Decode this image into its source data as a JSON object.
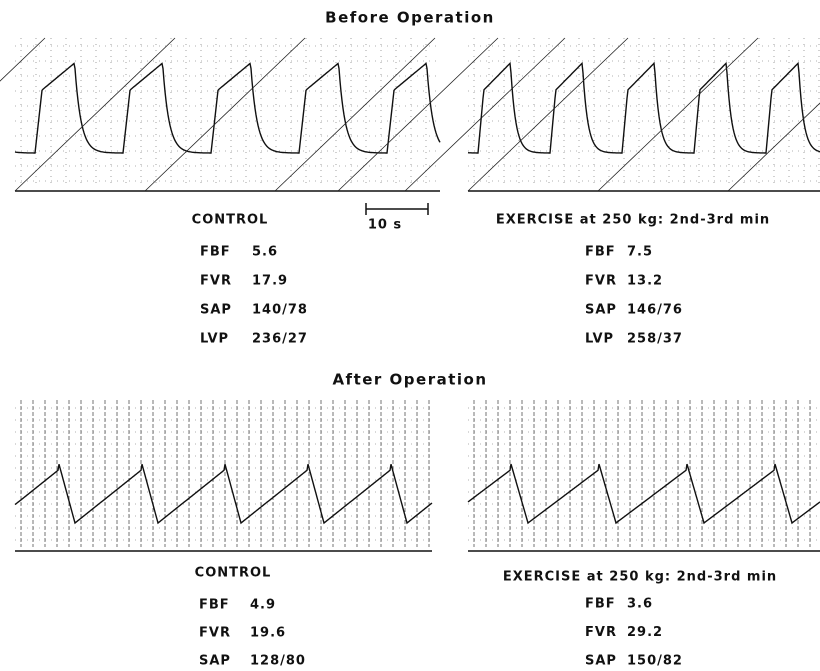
{
  "sections": [
    {
      "title": "Before Operation",
      "panels": [
        {
          "label": "CONTROL",
          "scale_bar": "10 s",
          "measures": [
            {
              "name": "FBF",
              "value": 5.6
            },
            {
              "name": "FVR",
              "value": 17.9
            },
            {
              "name": "SAP",
              "value": "140/78"
            },
            {
              "name": "LVP",
              "value": "236/27"
            }
          ]
        },
        {
          "label": "EXERCISE at 250 kg: 2nd-3rd min",
          "measures": [
            {
              "name": "FBF",
              "value": 7.5
            },
            {
              "name": "FVR",
              "value": 13.2
            },
            {
              "name": "SAP",
              "value": "146/76"
            },
            {
              "name": "LVP",
              "value": "258/37"
            }
          ]
        }
      ]
    },
    {
      "title": "After Operation",
      "panels": [
        {
          "label": "CONTROL",
          "measures": [
            {
              "name": "FBF",
              "value": 4.9
            },
            {
              "name": "FVR",
              "value": 19.6
            },
            {
              "name": "SAP",
              "value": "128/80"
            }
          ]
        },
        {
          "label": "EXERCISE at 250 kg: 2nd-3rd min",
          "measures": [
            {
              "name": "FBF",
              "value": 3.6
            },
            {
              "name": "FVR",
              "value": 29.2
            },
            {
              "name": "SAP",
              "value": "150/82"
            }
          ]
        }
      ]
    }
  ]
}
